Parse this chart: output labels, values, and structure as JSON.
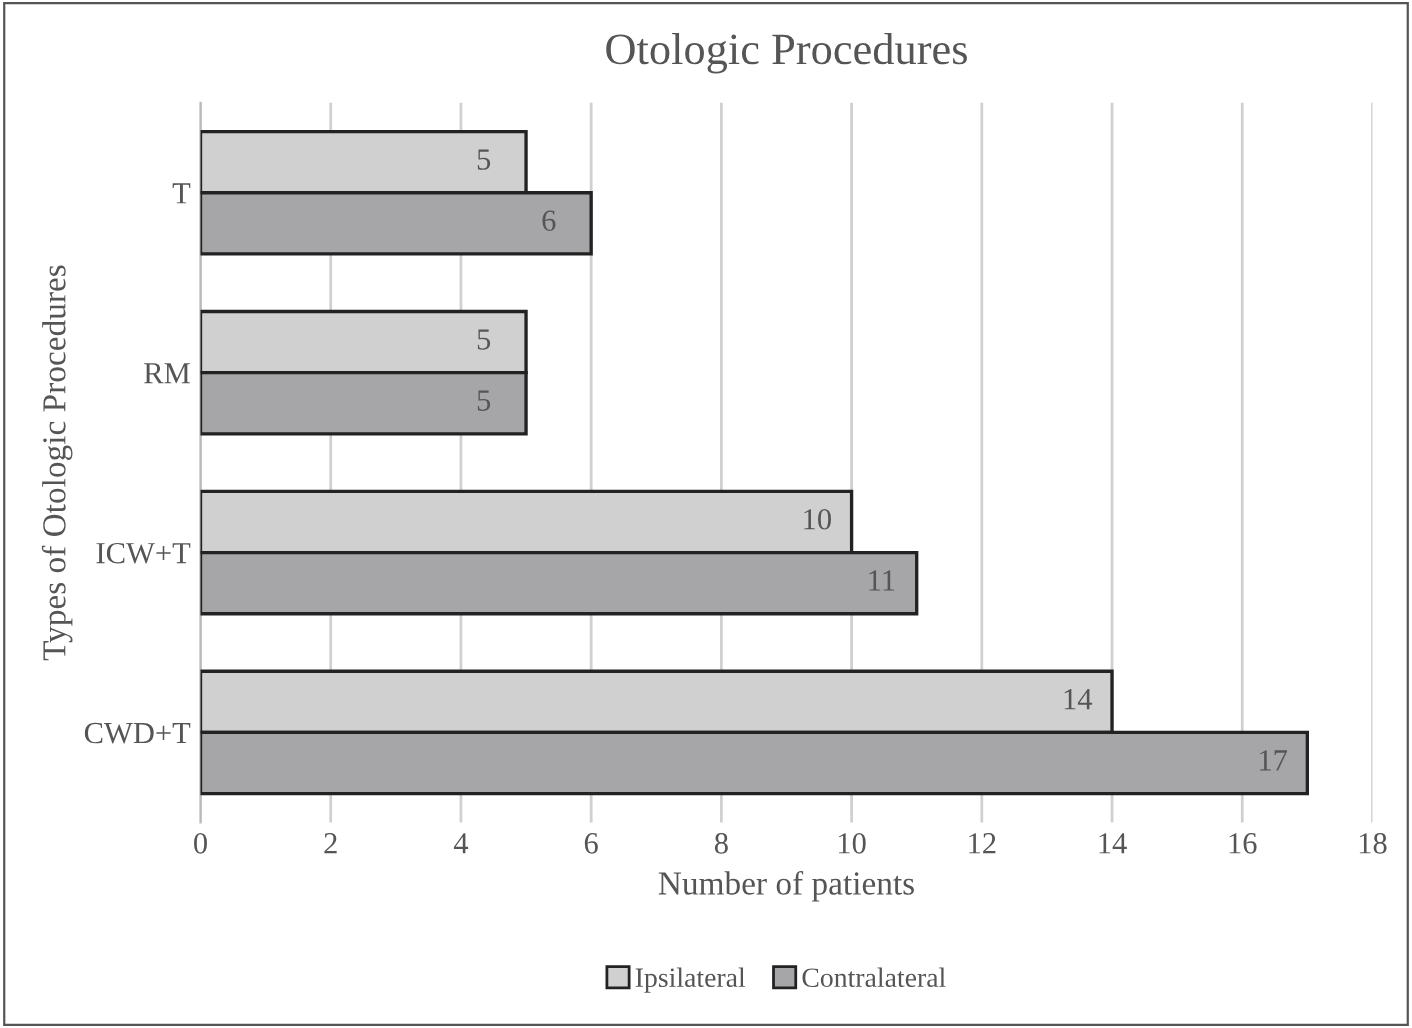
{
  "chart_data": {
    "type": "bar",
    "orientation": "horizontal",
    "title": "Otologic Procedures",
    "xlabel": "Number of patients",
    "ylabel": "Types of Otologic Procedures",
    "categories": [
      "T",
      "RM",
      "ICW+T",
      "CWD+T"
    ],
    "series": [
      {
        "name": "Ipsilateral",
        "color": "#d0d0d0",
        "values": [
          5,
          5,
          10,
          14
        ]
      },
      {
        "name": "Contralateral",
        "color": "#a6a6a8",
        "values": [
          6,
          5,
          11,
          17
        ]
      }
    ],
    "xlim": [
      0,
      18
    ],
    "xticks": [
      0,
      2,
      4,
      6,
      8,
      10,
      12,
      14,
      16,
      18
    ],
    "grid": "x",
    "legend": "bottom",
    "data_labels": true
  }
}
